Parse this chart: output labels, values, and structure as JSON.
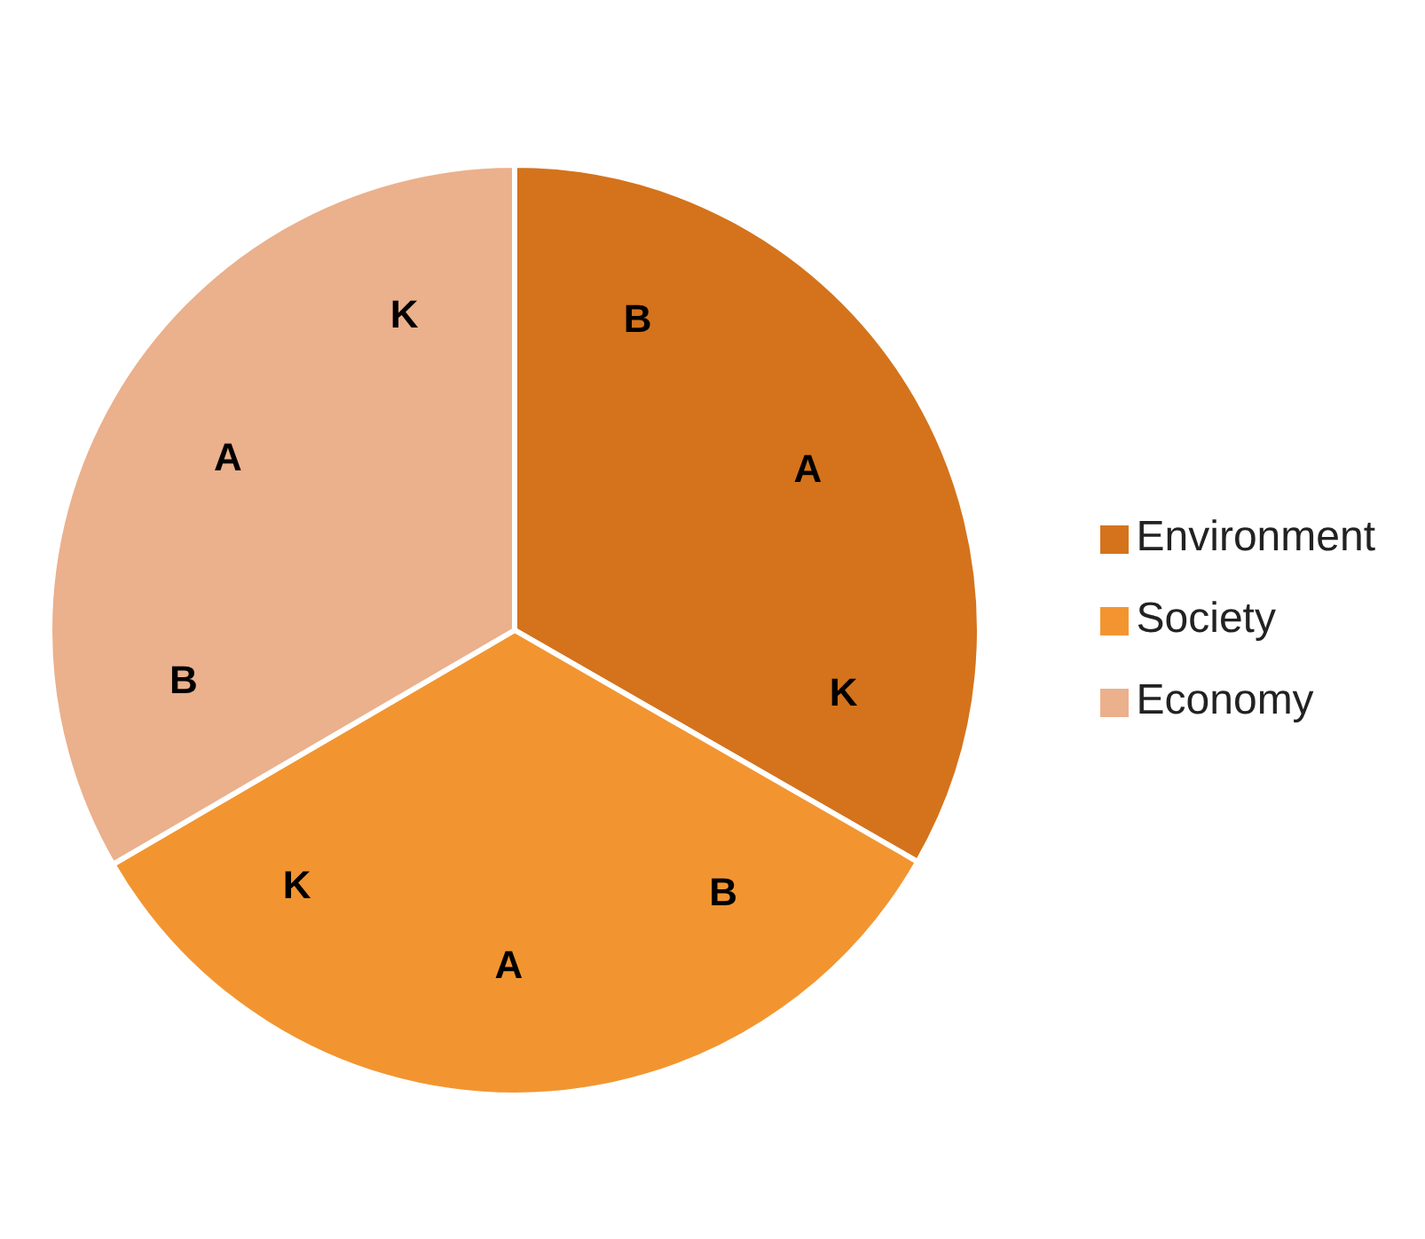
{
  "chart_data": {
    "type": "pie",
    "categories": [
      "Environment",
      "Society",
      "Economy"
    ],
    "values": [
      33.3,
      33.3,
      33.4
    ],
    "colors": [
      "#d4731c",
      "#f29530",
      "#ebb08c"
    ],
    "legend": "right",
    "annotations": [
      {
        "text": "B",
        "x": "Environment"
      },
      {
        "text": "A",
        "x": "Environment"
      },
      {
        "text": "K",
        "x": "Environment"
      },
      {
        "text": "B",
        "x": "Society"
      },
      {
        "text": "A",
        "x": "Society"
      },
      {
        "text": "K",
        "x": "Society"
      },
      {
        "text": "B",
        "x": "Economy"
      },
      {
        "text": "A",
        "x": "Economy"
      },
      {
        "text": "K",
        "x": "Economy"
      }
    ]
  }
}
